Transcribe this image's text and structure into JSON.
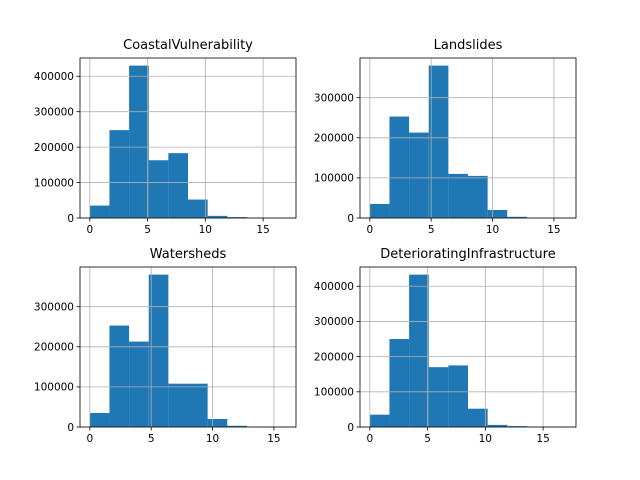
{
  "chart_data": [
    {
      "type": "bar",
      "title": "CoastalVulnerability",
      "bin_edges": [
        0,
        1.7,
        3.4,
        5.1,
        6.8,
        8.5,
        10.2,
        11.9,
        13.6,
        15.3,
        17
      ],
      "values": [
        35000,
        248000,
        430000,
        163000,
        183000,
        52000,
        6000,
        2500,
        800,
        200
      ],
      "xlim": [
        -0.85,
        17.85
      ],
      "ylim": [
        0,
        451500
      ],
      "xticks": [
        0,
        5,
        10,
        15
      ],
      "yticks": [
        0,
        100000,
        200000,
        300000,
        400000
      ],
      "grid": true
    },
    {
      "type": "bar",
      "title": "Landslides",
      "bin_edges": [
        0,
        1.6,
        3.2,
        4.8,
        6.4,
        8.0,
        9.6,
        11.2,
        12.8,
        14.4,
        16
      ],
      "values": [
        35000,
        253000,
        213000,
        380000,
        110000,
        105000,
        20000,
        3000,
        600,
        150
      ],
      "xlim": [
        -0.8,
        16.8
      ],
      "ylim": [
        0,
        399000
      ],
      "xticks": [
        0,
        5,
        10,
        15
      ],
      "yticks": [
        0,
        100000,
        200000,
        300000
      ],
      "grid": true
    },
    {
      "type": "bar",
      "title": "Watersheds",
      "bin_edges": [
        0,
        1.6,
        3.2,
        4.8,
        6.4,
        8.0,
        9.6,
        11.2,
        12.8,
        14.4,
        16
      ],
      "values": [
        35000,
        253000,
        213000,
        380000,
        108000,
        108000,
        20000,
        3000,
        600,
        150
      ],
      "xlim": [
        -0.8,
        16.8
      ],
      "ylim": [
        0,
        399000
      ],
      "xticks": [
        0,
        5,
        10,
        15
      ],
      "yticks": [
        0,
        100000,
        200000,
        300000
      ],
      "grid": true
    },
    {
      "type": "bar",
      "title": "DeterioratingInfrastructure",
      "bin_edges": [
        0,
        1.7,
        3.4,
        5.1,
        6.8,
        8.5,
        10.2,
        11.9,
        13.6,
        15.3,
        17
      ],
      "values": [
        35000,
        250000,
        433000,
        170000,
        175000,
        52000,
        6000,
        2500,
        800,
        200
      ],
      "xlim": [
        -0.85,
        17.85
      ],
      "ylim": [
        0,
        454650
      ],
      "xticks": [
        0,
        5,
        10,
        15
      ],
      "yticks": [
        0,
        100000,
        200000,
        300000,
        400000
      ],
      "grid": true
    }
  ],
  "style": {
    "bar_color": "#1f77b4",
    "grid_color": "#b0b0b0",
    "axis_color": "#000000"
  }
}
